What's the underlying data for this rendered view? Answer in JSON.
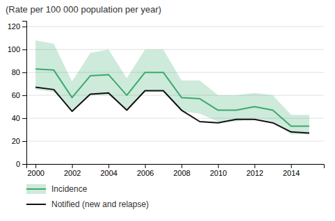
{
  "chart_data": {
    "type": "line",
    "title": "(Rate per 100 000 population per year)",
    "x": [
      2000,
      2001,
      2002,
      2003,
      2004,
      2005,
      2006,
      2007,
      2008,
      2009,
      2010,
      2011,
      2012,
      2013,
      2014,
      2015
    ],
    "xlim": [
      1999.5,
      2015.8
    ],
    "xticks": [
      2000,
      2002,
      2004,
      2006,
      2008,
      2010,
      2012,
      2014
    ],
    "ylim": [
      0,
      125
    ],
    "yticks": [
      0,
      20,
      40,
      60,
      80,
      100,
      120
    ],
    "grid": true,
    "legend": "bottom",
    "series": [
      {
        "name": "Incidence",
        "color": "#3aaa6e",
        "values": [
          83,
          82,
          58,
          77,
          78,
          60,
          80,
          80,
          58,
          57,
          47,
          47,
          50,
          47,
          33,
          33
        ],
        "upper": [
          108,
          105,
          72,
          97,
          100,
          75,
          100,
          100,
          73,
          73,
          60,
          60,
          62,
          60,
          43,
          43
        ],
        "lower": [
          65,
          63,
          47,
          60,
          60,
          48,
          63,
          63,
          46,
          44,
          37,
          37,
          40,
          37,
          26,
          26
        ]
      },
      {
        "name": "Notified (new and relapse)",
        "color": "#111111",
        "values": [
          67,
          65,
          46,
          61,
          62,
          47,
          64,
          64,
          47,
          37,
          36,
          39,
          39,
          36,
          28,
          27
        ]
      }
    ]
  }
}
